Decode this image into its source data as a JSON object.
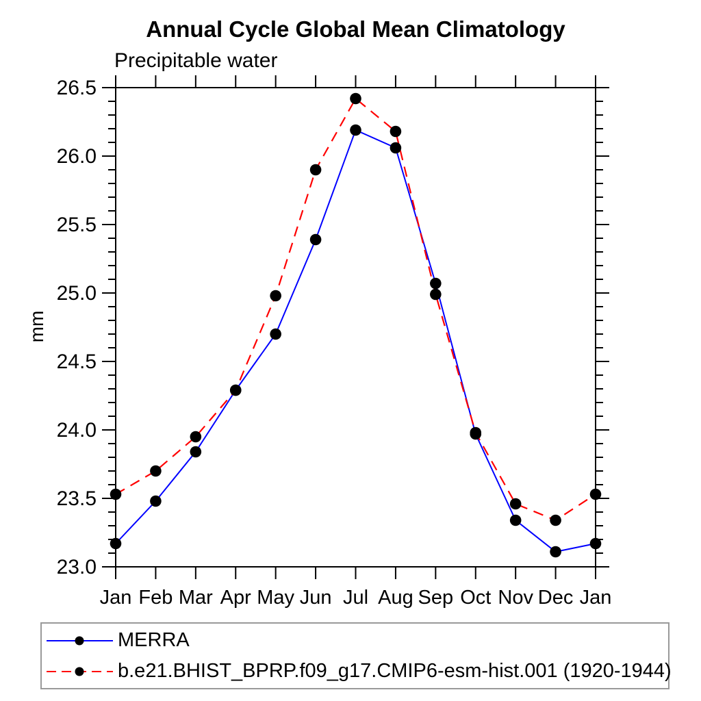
{
  "chart_data": {
    "type": "line",
    "title": "Annual Cycle Global Mean Climatology",
    "subtitle": "Precipitable water",
    "ylabel": "mm",
    "xlabel": "",
    "categories": [
      "Jan",
      "Feb",
      "Mar",
      "Apr",
      "May",
      "Jun",
      "Jul",
      "Aug",
      "Sep",
      "Oct",
      "Nov",
      "Dec",
      "Jan"
    ],
    "ylim": [
      23.0,
      26.5
    ],
    "yticks": [
      23.0,
      23.5,
      24.0,
      24.5,
      25.0,
      25.5,
      26.0,
      26.5
    ],
    "y_minor_step": 0.1,
    "grid": false,
    "legend_position": "bottom",
    "marker": "filled-circle",
    "marker_color": "#000000",
    "axis_color": "#000000",
    "legend_border_color": "#999999",
    "series": [
      {
        "name": "MERRA",
        "color": "#0000ff",
        "style": "solid",
        "values": [
          23.17,
          23.48,
          23.84,
          24.29,
          24.7,
          25.39,
          26.19,
          26.06,
          25.07,
          23.97,
          23.34,
          23.11,
          23.17
        ]
      },
      {
        "name": "b.e21.BHIST_BPRP.f09_g17.CMIP6-esm-hist.001 (1920-1944)",
        "color": "#ff0000",
        "style": "dashed",
        "values": [
          23.53,
          23.7,
          23.95,
          24.29,
          24.98,
          25.9,
          26.42,
          26.18,
          24.99,
          23.98,
          23.46,
          23.34,
          23.53
        ]
      }
    ]
  }
}
